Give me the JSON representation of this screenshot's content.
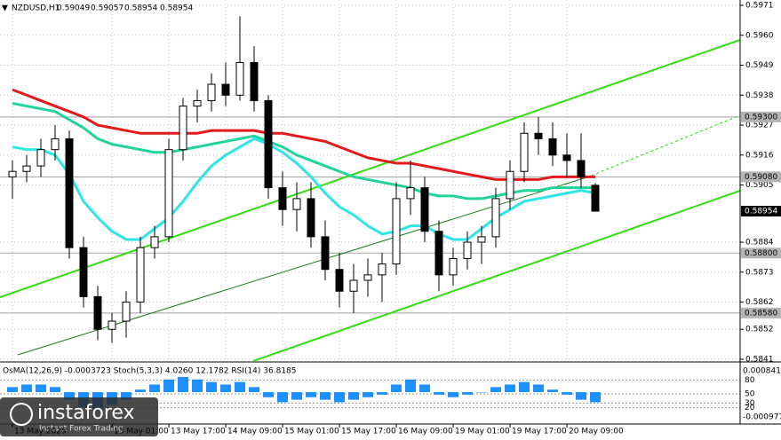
{
  "chart_data": {
    "type": "candlestick",
    "title": "NZDUSD,H1",
    "categories": [
      "13 May 2025",
      null,
      null,
      null,
      null,
      null,
      null,
      "13 May 01:00",
      null,
      null,
      null,
      "13 May 17:00",
      null,
      null,
      null,
      "14 May 09:00",
      null,
      null,
      null,
      "15 May 01:00",
      null,
      null,
      null,
      "15 May 17:00",
      null,
      null,
      null,
      "16 May 09:00",
      null,
      null,
      null,
      "19 May 01:00",
      null,
      null,
      null,
      "19 May 17:00",
      null,
      null,
      null,
      "20 May 09:00",
      null,
      null
    ],
    "open": [
      0.5908,
      0.591,
      0.5912,
      0.5918,
      0.5922,
      0.5882,
      0.5864,
      0.5852,
      0.5855,
      0.5862,
      0.5882,
      0.5886,
      0.5918,
      0.5934,
      0.5936,
      0.5942,
      0.5938,
      0.595,
      0.5936,
      0.5904,
      0.5896,
      0.59,
      0.5886,
      0.5874,
      0.5866,
      0.587,
      0.5872,
      0.5876,
      0.59,
      0.5904,
      0.5888,
      0.5872,
      0.5878,
      0.5884,
      0.5886,
      0.59,
      0.591,
      0.5924,
      0.5922,
      0.5916,
      0.5914,
      0.59049
    ],
    "high": [
      0.5914,
      0.5916,
      0.5922,
      0.5927,
      0.5925,
      0.5886,
      0.5868,
      0.5858,
      0.5866,
      0.5886,
      0.589,
      0.5922,
      0.5937,
      0.594,
      0.5946,
      0.595,
      0.5967,
      0.5956,
      0.5938,
      0.591,
      0.5906,
      0.5906,
      0.5892,
      0.588,
      0.5876,
      0.5878,
      0.588,
      0.5906,
      0.5914,
      0.5908,
      0.5892,
      0.5882,
      0.5888,
      0.589,
      0.5904,
      0.5914,
      0.5928,
      0.593,
      0.5928,
      0.5924,
      0.5924,
      0.59057
    ],
    "low": [
      0.59,
      0.5906,
      0.5908,
      0.5914,
      0.5878,
      0.586,
      0.5848,
      0.5847,
      0.5849,
      0.5858,
      0.5878,
      0.5884,
      0.5914,
      0.5928,
      0.5932,
      0.5934,
      0.5936,
      0.5932,
      0.59,
      0.589,
      0.5888,
      0.5882,
      0.587,
      0.586,
      0.5858,
      0.5864,
      0.5862,
      0.5872,
      0.5894,
      0.5884,
      0.5866,
      0.5868,
      0.5874,
      0.5876,
      0.5882,
      0.5896,
      0.5906,
      0.5916,
      0.5912,
      0.5908,
      0.5904,
      0.58954
    ],
    "close": [
      0.591,
      0.5912,
      0.5918,
      0.5922,
      0.5882,
      0.5864,
      0.5852,
      0.5855,
      0.5862,
      0.5882,
      0.5886,
      0.5918,
      0.5934,
      0.5936,
      0.5942,
      0.5938,
      0.595,
      0.5936,
      0.5904,
      0.5896,
      0.59,
      0.5886,
      0.5874,
      0.5866,
      0.587,
      0.5872,
      0.5876,
      0.59,
      0.5904,
      0.5888,
      0.5872,
      0.5878,
      0.5884,
      0.5886,
      0.59,
      0.591,
      0.5924,
      0.5922,
      0.5916,
      0.5914,
      0.5908,
      0.58954
    ],
    "series": [
      {
        "color": "#e31a1c",
        "values": [
          0.594,
          0.5938,
          0.5936,
          0.5934,
          0.5932,
          0.593,
          0.5927,
          0.5926,
          0.5925,
          0.5924,
          0.5924,
          0.5924,
          0.5924,
          0.5924,
          0.5925,
          0.5925,
          0.5925,
          0.5925,
          0.5924,
          0.5924,
          0.5923,
          0.5922,
          0.5921,
          0.5919,
          0.5917,
          0.5915,
          0.5914,
          0.5913,
          0.5913,
          0.5912,
          0.5911,
          0.591,
          0.5909,
          0.5908,
          0.5907,
          0.5907,
          0.5907,
          0.5907,
          0.5908,
          0.5908,
          0.5908,
          0.5908
        ]
      },
      {
        "color": "#22d39a",
        "values": [
          0.5935,
          0.5934,
          0.5933,
          0.5932,
          0.5929,
          0.5926,
          0.5922,
          0.592,
          0.5919,
          0.5918,
          0.5917,
          0.5917,
          0.5918,
          0.5919,
          0.592,
          0.5921,
          0.5922,
          0.5923,
          0.5921,
          0.5919,
          0.5916,
          0.5914,
          0.5912,
          0.591,
          0.5908,
          0.5907,
          0.5906,
          0.5905,
          0.5904,
          0.5902,
          0.5901,
          0.5901,
          0.59,
          0.59,
          0.5901,
          0.5902,
          0.5903,
          0.5903,
          0.5904,
          0.5904,
          0.5904,
          0.5904
        ]
      },
      {
        "color": "#2ee6e6",
        "values": [
          0.5919,
          0.5918,
          0.5918,
          0.5916,
          0.5909,
          0.5899,
          0.5893,
          0.5888,
          0.5885,
          0.5885,
          0.5889,
          0.5893,
          0.5899,
          0.5906,
          0.5912,
          0.5916,
          0.5919,
          0.5922,
          0.592,
          0.5917,
          0.5913,
          0.5908,
          0.5902,
          0.5897,
          0.5894,
          0.589,
          0.5887,
          0.5888,
          0.589,
          0.589,
          0.5887,
          0.5885,
          0.5885,
          0.5889,
          0.5893,
          0.5896,
          0.5899,
          0.59,
          0.5901,
          0.5902,
          0.5903,
          0.5902
        ]
      }
    ],
    "ylim": [
      0.5841,
      0.5971
    ],
    "yticks": [
      0.5971,
      {
        "value": 0.596,
        "label": "0.5960"
      },
      0.5949,
      0.5938,
      0.5927,
      0.5916,
      0.5905,
      0.5884,
      0.5873,
      0.5862,
      0.5852,
      0.5841
    ],
    "levels": [
      {
        "value": 0.593,
        "label": "0.59300"
      },
      {
        "value": 0.5908,
        "label": "0.59080"
      },
      {
        "value": 0.588,
        "label": "0.58800"
      },
      {
        "value": 0.5858,
        "label": "0.58580"
      }
    ],
    "grid": true,
    "indicator": {
      "label": "OsMA(12,26,9) -0.0003723  Stoch(5,3,3) 4.0260 12.1782  RSI(14) 36.8185",
      "color": "#1e90ff",
      "values": [
        0.0002,
        0.0003,
        0.0003,
        0.0002,
        -0.0003,
        -0.0006,
        -0.0007,
        -0.0005,
        -0.0003,
        0.0001,
        0.0003,
        0.0005,
        0.0006,
        0.0005,
        0.0004,
        0.0003,
        0.0004,
        0.0002,
        -0.0002,
        -0.0004,
        -0.0003,
        -0.0002,
        -0.0003,
        -0.0004,
        -0.0003,
        -0.0002,
        -0.0001,
        0.0003,
        0.0005,
        0.0003,
        -0.0001,
        -0.0002,
        -0.0001,
        0,
        0.0002,
        0.0003,
        0.0004,
        0.0003,
        0.0001,
        -0.0001,
        -0.0003,
        -0.0004
      ],
      "ylim": [
        -0.000977,
        0.000841
      ],
      "y2lim": [
        0,
        100
      ],
      "y2ticks": [
        80,
        50,
        30,
        20
      ]
    },
    "watermark": {
      "brand": "instaforex",
      "tagline": "Instant Forex Trading"
    }
  }
}
